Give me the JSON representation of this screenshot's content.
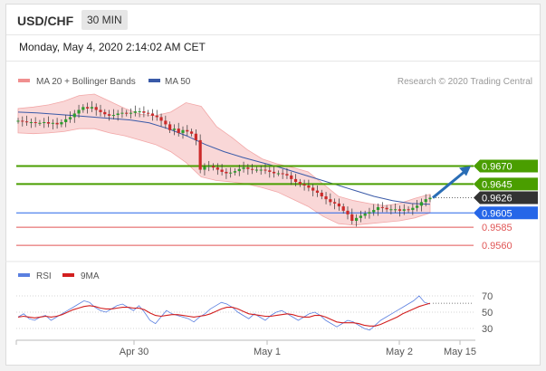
{
  "header": {
    "pair": "USD/CHF",
    "timeframe": "30 MIN"
  },
  "date_line": "Monday, May 4, 2020 2:14:02 AM CET",
  "legend": {
    "bb_label": "MA 20 + Bollinger Bands",
    "ma50_label": "MA 50",
    "credit": "Research © 2020 Trading Central"
  },
  "rsi_legend": {
    "rsi_label": "RSI",
    "ma9_label": "9MA"
  },
  "colors": {
    "green": "#4a9e00",
    "blue": "#2566e8",
    "red": "#e05555",
    "dark": "#333333",
    "bb": "#f2a7a7",
    "ma50": "#3a5aa8",
    "up": "#2d9d2d",
    "down": "#cc2a2a",
    "rsi": "#5a7fe0",
    "rsi_ma": "#d21f1f",
    "arrow": "#2a6db5"
  },
  "chart_data": [
    {
      "type": "candlestick",
      "ylim": [
        0.9545,
        0.9775
      ],
      "x_ticks": [
        "Apr 30",
        "May 1",
        "May 2",
        "May 15"
      ],
      "levels": [
        {
          "value": 0.967,
          "label": "0.9670",
          "style": "green"
        },
        {
          "value": 0.9645,
          "label": "0.9645",
          "style": "green"
        },
        {
          "value": 0.9626,
          "label": "0.9626",
          "style": "current"
        },
        {
          "value": 0.9605,
          "label": "0.9605",
          "style": "blue"
        },
        {
          "value": 0.9585,
          "label": "0.9585",
          "style": "red"
        },
        {
          "value": 0.956,
          "label": "0.9560",
          "style": "red"
        }
      ],
      "price_path": [
        0.9733,
        0.9732,
        0.9731,
        0.9731,
        0.973,
        0.973,
        0.9731,
        0.9729,
        0.973,
        0.9728,
        0.9731,
        0.9735,
        0.9738,
        0.9743,
        0.9748,
        0.9752,
        0.975,
        0.9752,
        0.9748,
        0.9745,
        0.9742,
        0.974,
        0.9741,
        0.9743,
        0.9744,
        0.9743,
        0.9744,
        0.9746,
        0.9746,
        0.9744,
        0.9743,
        0.974,
        0.9738,
        0.9733,
        0.9728,
        0.972,
        0.9722,
        0.9716,
        0.972,
        0.9718,
        0.9715,
        0.9706,
        0.9665,
        0.9669,
        0.967,
        0.9668,
        0.9665,
        0.9662,
        0.966,
        0.9661,
        0.9663,
        0.9666,
        0.9668,
        0.9666,
        0.9665,
        0.9665,
        0.9665,
        0.9664,
        0.9662,
        0.966,
        0.966,
        0.9659,
        0.9657,
        0.9652,
        0.9648,
        0.9645,
        0.9643,
        0.964,
        0.9636,
        0.9633,
        0.9628,
        0.9624,
        0.962,
        0.9618,
        0.9614,
        0.9608,
        0.9603,
        0.9594,
        0.9598,
        0.9601,
        0.9604,
        0.9606,
        0.9609,
        0.9613,
        0.9612,
        0.961,
        0.961,
        0.961,
        0.9608,
        0.961,
        0.9609,
        0.9612,
        0.9615,
        0.962,
        0.9624,
        0.9626
      ],
      "bb_upper": [
        0.975,
        0.9752,
        0.9755,
        0.976,
        0.9768,
        0.977,
        0.976,
        0.975,
        0.9742,
        0.974,
        0.9745,
        0.9758,
        0.9753,
        0.9725,
        0.971,
        0.9693,
        0.968,
        0.9673,
        0.9668,
        0.9662,
        0.9645,
        0.9628,
        0.9622,
        0.9618,
        0.9615,
        0.9618,
        0.9625,
        0.9631
      ],
      "bb_lower": [
        0.9716,
        0.9715,
        0.9716,
        0.9718,
        0.9722,
        0.9722,
        0.9716,
        0.9712,
        0.9706,
        0.97,
        0.969,
        0.9675,
        0.9655,
        0.965,
        0.9648,
        0.9645,
        0.964,
        0.9634,
        0.9624,
        0.9614,
        0.96,
        0.959,
        0.9588,
        0.959,
        0.9592,
        0.9594,
        0.9598,
        0.9605
      ],
      "ma50": [
        0.9745,
        0.9744,
        0.9742,
        0.974,
        0.9738,
        0.9736,
        0.9734,
        0.973,
        0.9722,
        0.9712,
        0.97,
        0.969,
        0.9682,
        0.9675,
        0.9668,
        0.966,
        0.9652,
        0.9644,
        0.9636,
        0.9628,
        0.9622,
        0.9618,
        0.9617
      ]
    },
    {
      "type": "line",
      "ylim": [
        20,
        80
      ],
      "y_ticks": [
        70,
        50,
        30
      ],
      "series": [
        {
          "name": "RSI",
          "values": [
            44,
            48,
            42,
            40,
            44,
            46,
            40,
            44,
            48,
            52,
            56,
            60,
            64,
            62,
            56,
            52,
            50,
            54,
            58,
            60,
            56,
            52,
            58,
            50,
            40,
            36,
            44,
            52,
            48,
            46,
            44,
            42,
            38,
            44,
            48,
            54,
            58,
            62,
            60,
            56,
            50,
            46,
            42,
            48,
            44,
            40,
            46,
            50,
            52,
            48,
            44,
            40,
            44,
            48,
            50,
            46,
            40,
            36,
            32,
            36,
            40,
            38,
            34,
            30,
            28,
            34,
            40,
            44,
            48,
            52,
            56,
            60,
            64,
            70,
            62,
            60
          ]
        },
        {
          "name": "9MA",
          "values": [
            44,
            45,
            44,
            43,
            44,
            45,
            44,
            45,
            47,
            50,
            53,
            55,
            57,
            58,
            57,
            55,
            54,
            54,
            55,
            56,
            56,
            55,
            55,
            53,
            49,
            46,
            45,
            46,
            47,
            47,
            46,
            45,
            44,
            45,
            46,
            48,
            51,
            54,
            56,
            56,
            54,
            51,
            48,
            47,
            46,
            45,
            45,
            46,
            47,
            48,
            47,
            45,
            44,
            44,
            46,
            46,
            44,
            41,
            38,
            37,
            37,
            37,
            36,
            34,
            33,
            33,
            35,
            38,
            41,
            44,
            48,
            51,
            54,
            57,
            59,
            61
          ]
        }
      ]
    }
  ]
}
